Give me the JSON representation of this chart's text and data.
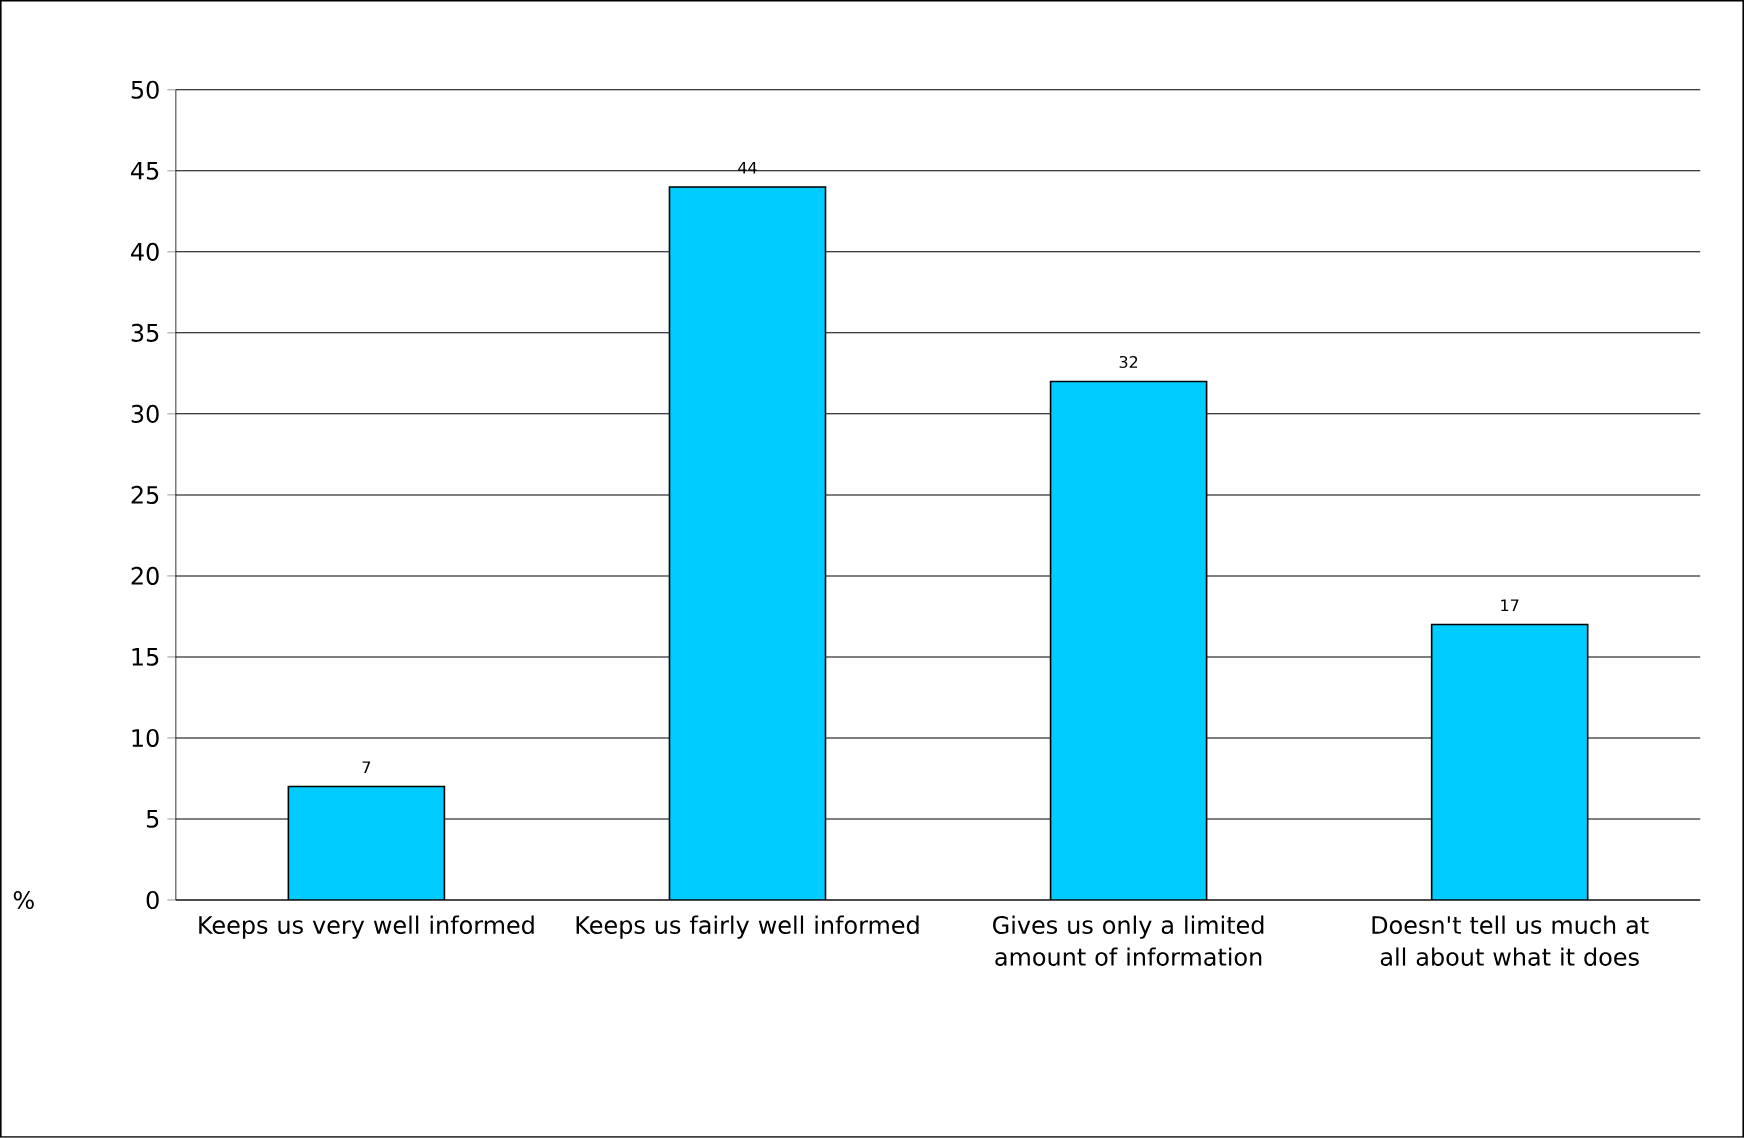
{
  "chart_data": {
    "type": "bar",
    "categories": [
      "Keeps us very well informed",
      "Keeps us fairly well informed",
      "Gives us only a limited amount of information",
      "Doesn't tell us much at all about what it does"
    ],
    "values": [
      7,
      44,
      32,
      17
    ],
    "color": "#00ccff",
    "ylabel": "%",
    "ylim": [
      0,
      50
    ],
    "yticks": [
      0,
      5,
      10,
      15,
      20,
      25,
      30,
      35,
      40,
      45,
      50
    ],
    "grid": "y",
    "data_labels": true
  }
}
